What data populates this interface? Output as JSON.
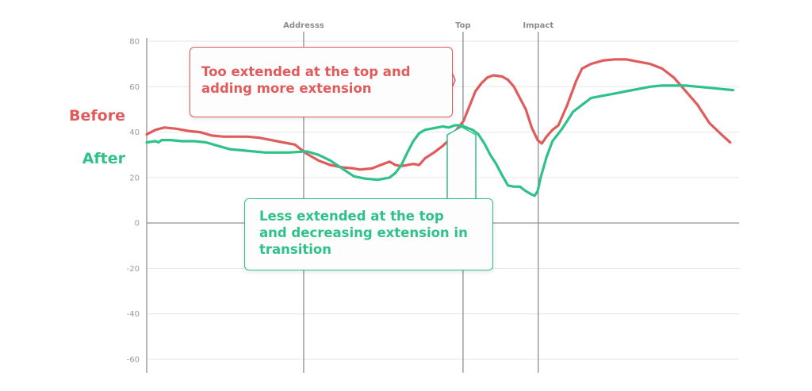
{
  "chart_data": {
    "type": "line",
    "title": "",
    "xlabel": "",
    "ylabel": "",
    "ylim": [
      -60,
      80
    ],
    "y_ticks": [
      80,
      60,
      40,
      20,
      0,
      -20,
      -40,
      -60
    ],
    "x_range": [
      0,
      100
    ],
    "grid": true,
    "phase_markers": [
      {
        "label": "Addresss",
        "x": 26.5
      },
      {
        "label": "Top",
        "x": 53.4
      },
      {
        "label": "Impact",
        "x": 66.1
      }
    ],
    "series": [
      {
        "name": "Before",
        "color": "#e05c5c",
        "points": [
          [
            0,
            39
          ],
          [
            1.5,
            41
          ],
          [
            3,
            42
          ],
          [
            5,
            41.5
          ],
          [
            7,
            40.5
          ],
          [
            9,
            40
          ],
          [
            11,
            38.5
          ],
          [
            13,
            38
          ],
          [
            15,
            38
          ],
          [
            17,
            38
          ],
          [
            19,
            37.5
          ],
          [
            21,
            36.5
          ],
          [
            23,
            35.5
          ],
          [
            25,
            34.5
          ],
          [
            27,
            30.5
          ],
          [
            29,
            27.5
          ],
          [
            31,
            25.5
          ],
          [
            33,
            24.5
          ],
          [
            35,
            24
          ],
          [
            36,
            23.5
          ],
          [
            38,
            24
          ],
          [
            39,
            25
          ],
          [
            41,
            27
          ],
          [
            42,
            25.5
          ],
          [
            43,
            25
          ],
          [
            45,
            26
          ],
          [
            46,
            25.5
          ],
          [
            47,
            28.5
          ],
          [
            48.5,
            31
          ],
          [
            50,
            34
          ],
          [
            51,
            36.5
          ],
          [
            52,
            40
          ],
          [
            53.5,
            45
          ],
          [
            54.5,
            51.5
          ],
          [
            55.5,
            58
          ],
          [
            56.5,
            61.5
          ],
          [
            57.5,
            64
          ],
          [
            58.5,
            65
          ],
          [
            60,
            64.5
          ],
          [
            61,
            63
          ],
          [
            62,
            60
          ],
          [
            63,
            55
          ],
          [
            64,
            50
          ],
          [
            65,
            42
          ],
          [
            66,
            36.5
          ],
          [
            66.7,
            35
          ],
          [
            67.5,
            38
          ],
          [
            68.5,
            41
          ],
          [
            69.5,
            43
          ],
          [
            71,
            52
          ],
          [
            72.5,
            62.5
          ],
          [
            73.5,
            68
          ],
          [
            75,
            70
          ],
          [
            77,
            71.5
          ],
          [
            79,
            72
          ],
          [
            81,
            72
          ],
          [
            83,
            71
          ],
          [
            85,
            70
          ],
          [
            87,
            68
          ],
          [
            89,
            64
          ],
          [
            91,
            58
          ],
          [
            93,
            52
          ],
          [
            95,
            44
          ],
          [
            97,
            39
          ],
          [
            98.5,
            35.5
          ]
        ]
      },
      {
        "name": "After",
        "color": "#2fc18a",
        "points": [
          [
            0,
            35.5
          ],
          [
            1.5,
            36
          ],
          [
            2,
            35.5
          ],
          [
            2.5,
            36.5
          ],
          [
            4,
            36.5
          ],
          [
            6,
            36
          ],
          [
            8,
            36
          ],
          [
            10,
            35.5
          ],
          [
            12,
            34
          ],
          [
            14,
            32.5
          ],
          [
            16,
            32
          ],
          [
            18,
            31.5
          ],
          [
            20,
            31
          ],
          [
            22,
            31
          ],
          [
            24,
            31
          ],
          [
            27,
            31.5
          ],
          [
            29,
            30
          ],
          [
            31,
            27.5
          ],
          [
            33,
            24
          ],
          [
            35,
            20.5
          ],
          [
            37,
            19.5
          ],
          [
            39,
            19
          ],
          [
            41,
            20
          ],
          [
            42,
            22
          ],
          [
            43,
            25.5
          ],
          [
            44,
            31
          ],
          [
            45,
            36
          ],
          [
            46,
            39.5
          ],
          [
            47,
            41
          ],
          [
            48,
            41.5
          ],
          [
            49,
            42
          ],
          [
            50,
            42.5
          ],
          [
            51,
            42
          ],
          [
            52,
            43
          ],
          [
            53,
            43
          ],
          [
            53.5,
            42.5
          ],
          [
            55,
            41
          ],
          [
            56,
            39
          ],
          [
            57,
            35
          ],
          [
            58,
            30
          ],
          [
            59,
            26
          ],
          [
            60,
            21
          ],
          [
            61,
            16.5
          ],
          [
            62,
            16
          ],
          [
            63,
            16
          ],
          [
            64,
            14
          ],
          [
            65,
            12.5
          ],
          [
            65.5,
            12
          ],
          [
            66,
            14
          ],
          [
            66.5,
            20
          ],
          [
            67.5,
            29
          ],
          [
            68.5,
            36
          ],
          [
            70,
            41
          ],
          [
            71,
            45
          ],
          [
            72,
            49
          ],
          [
            73,
            51
          ],
          [
            74,
            53
          ],
          [
            75,
            55
          ],
          [
            77,
            56
          ],
          [
            79,
            57
          ],
          [
            81,
            58
          ],
          [
            83,
            59
          ],
          [
            85,
            60
          ],
          [
            87,
            60.5
          ],
          [
            89,
            60.5
          ],
          [
            91,
            60.5
          ],
          [
            93,
            60
          ],
          [
            95,
            59.5
          ],
          [
            97,
            59
          ],
          [
            99,
            58.5
          ]
        ]
      }
    ],
    "annotations": [
      {
        "series": "Before",
        "text": "Too extended at the top and\nadding more extension"
      },
      {
        "series": "After",
        "text": "Less extended at the top\nand decreasing extension in\ntransition"
      }
    ]
  }
}
